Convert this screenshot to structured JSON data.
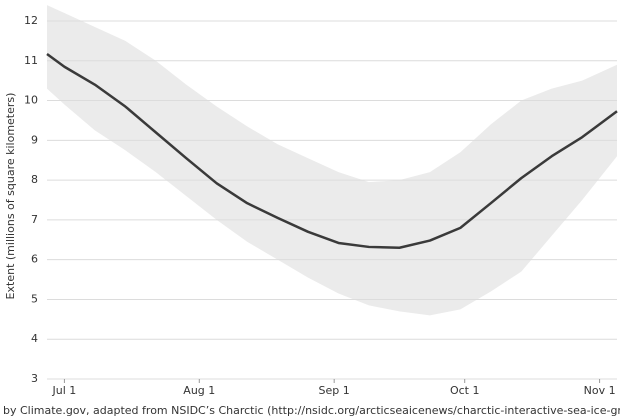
{
  "chart_data": {
    "type": "line",
    "y_label": "Extent (millions of square kilometers)",
    "footer": "by Climate.gov, adapted from NSIDC’s Charctic (http://nsidc.org/arcticseaicenews/charctic-interactive-sea-ice-graph/)",
    "x": [
      "06-27",
      "07-01",
      "07-08",
      "07-15",
      "07-22",
      "07-29",
      "08-05",
      "08-12",
      "08-19",
      "08-26",
      "09-02",
      "09-09",
      "09-16",
      "09-23",
      "09-30",
      "10-07",
      "10-14",
      "10-21",
      "10-28",
      "11-05"
    ],
    "xlim": [
      "06-27",
      "11-05"
    ],
    "xticks": [
      {
        "value": "07-01",
        "label": "Jul 1"
      },
      {
        "value": "08-01",
        "label": "Aug 1"
      },
      {
        "value": "09-01",
        "label": "Sep 1"
      },
      {
        "value": "10-01",
        "label": "Oct 1"
      },
      {
        "value": "11-01",
        "label": "Nov 1"
      }
    ],
    "ylim": [
      3,
      12
    ],
    "yticks": [
      3,
      4,
      5,
      6,
      7,
      8,
      9,
      10,
      11,
      12
    ],
    "grid": true,
    "series": [
      {
        "color": "#3a3a3a",
        "values": [
          11.17,
          10.85,
          10.4,
          9.85,
          9.2,
          8.55,
          7.92,
          7.42,
          7.05,
          6.7,
          6.42,
          6.32,
          6.3,
          6.48,
          6.8,
          7.42,
          8.05,
          8.6,
          9.08,
          9.73
        ]
      }
    ],
    "band": {
      "color": "#ebebeb",
      "high": [
        12.4,
        12.2,
        11.85,
        11.5,
        11.0,
        10.4,
        9.85,
        9.35,
        8.9,
        8.55,
        8.2,
        7.95,
        8.0,
        8.2,
        8.7,
        9.4,
        10.0,
        10.3,
        10.5,
        10.9
      ],
      "low": [
        10.3,
        9.9,
        9.25,
        8.75,
        8.2,
        7.6,
        7.0,
        6.45,
        6.0,
        5.55,
        5.15,
        4.85,
        4.7,
        4.6,
        4.75,
        5.2,
        5.7,
        6.6,
        7.5,
        8.6
      ]
    }
  }
}
